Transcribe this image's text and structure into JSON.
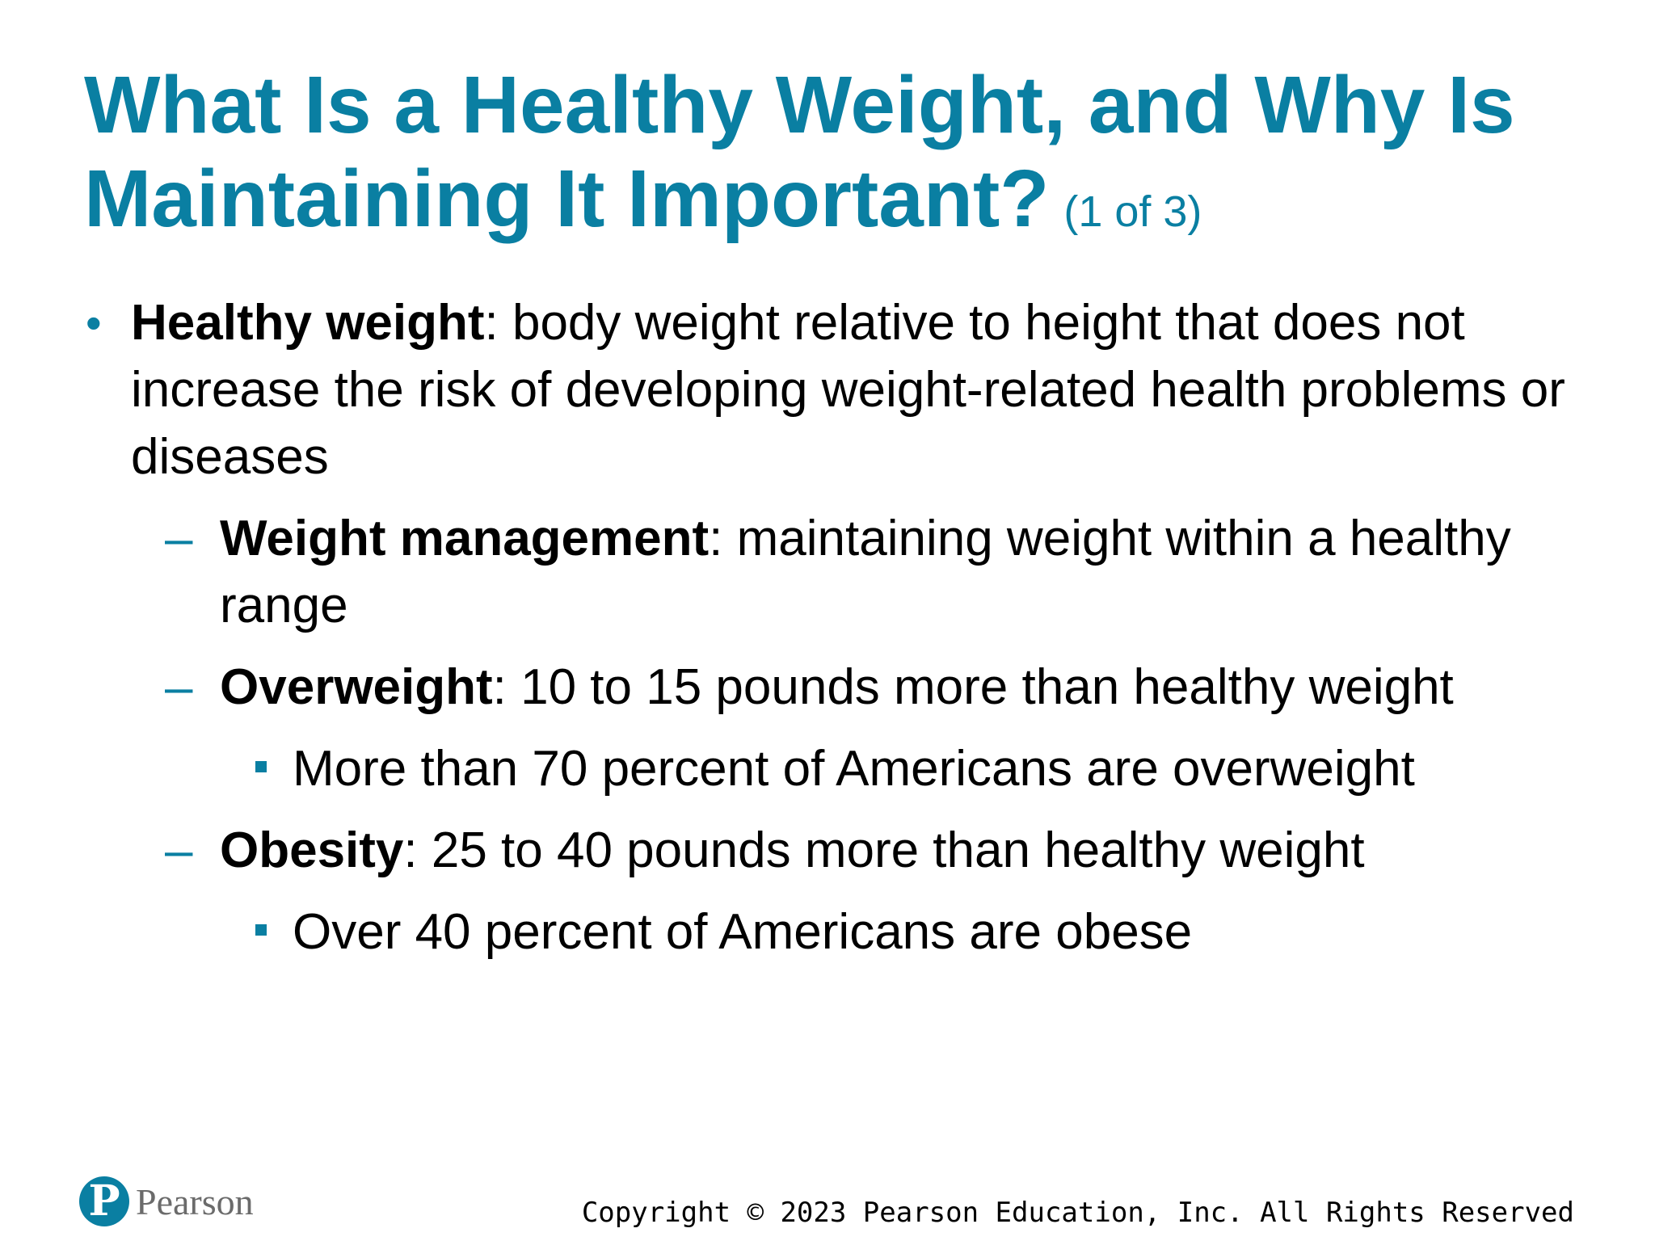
{
  "slide": {
    "title": "What Is a Healthy Weight, and Why Is Maintaining It Important?",
    "subtitle": "(1 of 3)",
    "bullets": [
      {
        "term": "Healthy weight",
        "text": ": body weight relative to height that does not increase the risk of developing weight-related health problems or diseases"
      }
    ],
    "sub_bullets": [
      {
        "term": "Weight management",
        "text": ": maintaining weight within a healthy range"
      },
      {
        "term": "Overweight",
        "text": ": 10 to 15 pounds more than healthy weight",
        "detail": "More than 70 percent of Americans are overweight"
      },
      {
        "term": "Obesity",
        "text": ": 25 to 40 pounds more than healthy weight",
        "detail": "Over 40 percent of Americans are obese"
      }
    ],
    "markers": {
      "level1": "•",
      "level2": "–"
    }
  },
  "footer": {
    "copyright": "Copyright © 2023 Pearson Education, Inc. All Rights Reserved",
    "logo_text": "Pearson",
    "logo_mark": "P"
  },
  "colors": {
    "accent": "#0a7fa2",
    "text": "#000000",
    "logo_text": "#6b6b6b"
  }
}
